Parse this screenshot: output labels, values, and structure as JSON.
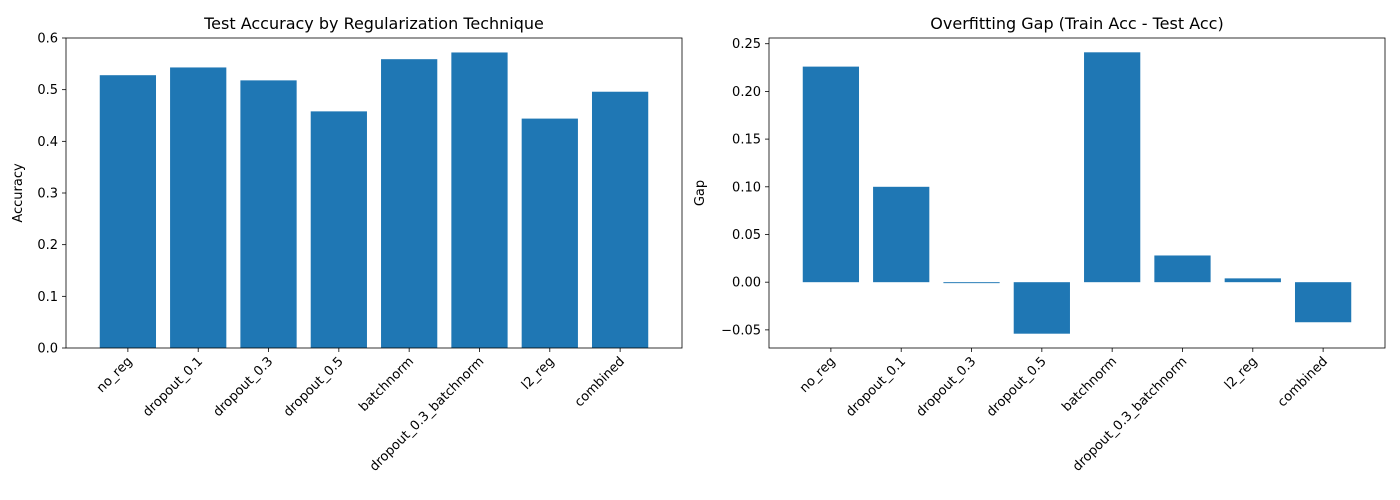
{
  "chart_data": [
    {
      "type": "bar",
      "title": "Test Accuracy by Regularization Technique",
      "xlabel": "",
      "ylabel": "Accuracy",
      "categories": [
        "no_reg",
        "dropout_0.1",
        "dropout_0.3",
        "dropout_0.5",
        "batchnorm",
        "dropout_0.3_batchnorm",
        "l2_reg",
        "combined"
      ],
      "values": [
        0.528,
        0.543,
        0.518,
        0.458,
        0.559,
        0.572,
        0.444,
        0.496
      ],
      "ylim": [
        0,
        0.6
      ],
      "yticks": [
        0.0,
        0.1,
        0.2,
        0.3,
        0.4,
        0.5,
        0.6
      ],
      "ytick_labels": [
        "0.0",
        "0.1",
        "0.2",
        "0.3",
        "0.4",
        "0.5",
        "0.6"
      ],
      "bar_color": "#1f77b4",
      "grid": false
    },
    {
      "type": "bar",
      "title": "Overfitting Gap (Train Acc - Test Acc)",
      "xlabel": "",
      "ylabel": "Gap",
      "categories": [
        "no_reg",
        "dropout_0.1",
        "dropout_0.3",
        "dropout_0.5",
        "batchnorm",
        "dropout_0.3_batchnorm",
        "l2_reg",
        "combined"
      ],
      "values": [
        0.226,
        0.1,
        -0.001,
        -0.054,
        0.241,
        0.028,
        0.004,
        -0.042
      ],
      "ylim": [
        -0.069,
        0.256
      ],
      "yticks": [
        -0.05,
        0.0,
        0.05,
        0.1,
        0.15,
        0.2,
        0.25
      ],
      "ytick_labels": [
        "−0.05",
        "0.00",
        "0.05",
        "0.10",
        "0.15",
        "0.20",
        "0.25"
      ],
      "bar_color": "#1f77b4",
      "grid": false
    }
  ]
}
